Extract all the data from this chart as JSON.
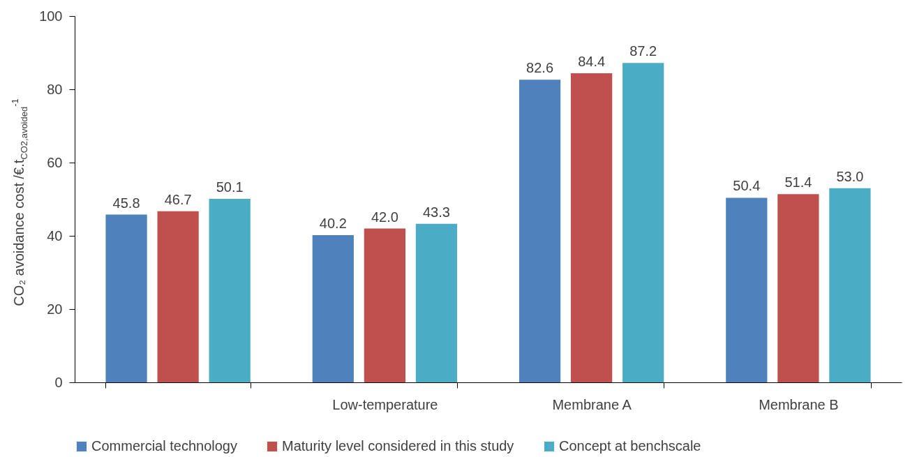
{
  "chart_data": {
    "type": "bar",
    "ylabel": "CO₂ avoidance cost /€.t$_{CO2,avoided}$$^{-1}$",
    "categories": [
      null,
      "Low-temperature",
      "Membrane A",
      "Membrane B"
    ],
    "series": [
      {
        "name": "Commercial technology",
        "color": "#4f81bd",
        "values": [
          45.8,
          40.2,
          82.6,
          50.4
        ],
        "value_labels": [
          "45.8",
          "40.2",
          "82.6",
          "50.4"
        ]
      },
      {
        "name": "Maturity level considered in this study",
        "color": "#c0504d",
        "values": [
          46.7,
          42.0,
          84.4,
          51.4
        ],
        "value_labels": [
          "46.7",
          "42.0",
          "84.4",
          "51.4"
        ]
      },
      {
        "name": "Concept at benchscale",
        "color": "#4bacc6",
        "values": [
          50.1,
          43.3,
          87.2,
          53.0
        ],
        "value_labels": [
          "50.1",
          "43.3",
          "87.2",
          "53.0"
        ]
      }
    ],
    "ylim": [
      0,
      100
    ],
    "yticks": [
      0,
      20,
      40,
      60,
      80,
      100
    ],
    "grid": false,
    "legend": "bottom"
  }
}
